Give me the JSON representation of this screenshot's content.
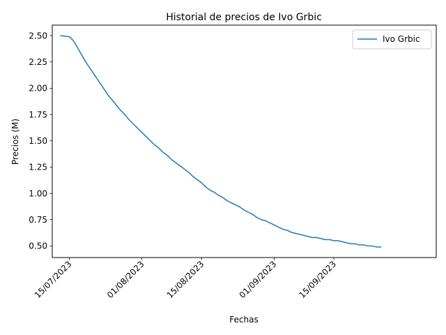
{
  "chart_data": {
    "type": "line",
    "title": "Historial de precios de Ivo Grbic",
    "xlabel": "Fechas",
    "ylabel": "Precios (M)",
    "legend_position": "top-right",
    "grid": false,
    "ylim": [
      0.39,
      2.6
    ],
    "xlim": [
      "2023-07-11",
      "2023-10-09"
    ],
    "x_ticks": [
      "2023-07-15",
      "2023-08-01",
      "2023-08-15",
      "2023-09-01",
      "2023-09-15"
    ],
    "x_tick_labels": [
      "15/07/2023",
      "01/08/2023",
      "15/08/2023",
      "01/09/2023",
      "15/09/2023"
    ],
    "y_ticks": [
      0.5,
      0.75,
      1.0,
      1.25,
      1.5,
      1.75,
      2.0,
      2.25,
      2.5
    ],
    "y_tick_labels": [
      "0.50",
      "0.75",
      "1.00",
      "1.25",
      "1.50",
      "1.75",
      "2.00",
      "2.25",
      "2.50"
    ],
    "series": [
      {
        "name": "Ivo Grbic",
        "color": "#1f77b4",
        "x": [
          "2023-07-13",
          "2023-07-15",
          "2023-07-16",
          "2023-07-17",
          "2023-07-18",
          "2023-07-19",
          "2023-07-20",
          "2023-07-21",
          "2023-07-22",
          "2023-07-23",
          "2023-07-24",
          "2023-07-25",
          "2023-07-26",
          "2023-07-27",
          "2023-07-28",
          "2023-07-29",
          "2023-07-30",
          "2023-07-31",
          "2023-08-01",
          "2023-08-02",
          "2023-08-03",
          "2023-08-04",
          "2023-08-05",
          "2023-08-06",
          "2023-08-07",
          "2023-08-08",
          "2023-08-09",
          "2023-08-10",
          "2023-08-11",
          "2023-08-12",
          "2023-08-13",
          "2023-08-14",
          "2023-08-15",
          "2023-08-16",
          "2023-08-17",
          "2023-08-18",
          "2023-08-19",
          "2023-08-20",
          "2023-08-21",
          "2023-08-22",
          "2023-08-23",
          "2023-08-24",
          "2023-08-25",
          "2023-08-26",
          "2023-08-27",
          "2023-08-28",
          "2023-08-29",
          "2023-08-30",
          "2023-08-31",
          "2023-09-01",
          "2023-09-02",
          "2023-09-03",
          "2023-09-04",
          "2023-09-05",
          "2023-09-06",
          "2023-09-07",
          "2023-09-08",
          "2023-09-09",
          "2023-09-10",
          "2023-09-11",
          "2023-09-12",
          "2023-09-13",
          "2023-09-14",
          "2023-09-15",
          "2023-09-16",
          "2023-09-17",
          "2023-09-18",
          "2023-09-19",
          "2023-09-20",
          "2023-09-21",
          "2023-09-22",
          "2023-09-23",
          "2023-09-24",
          "2023-09-25",
          "2023-09-26"
        ],
        "y": [
          2.5,
          2.49,
          2.45,
          2.38,
          2.31,
          2.24,
          2.18,
          2.12,
          2.06,
          2.0,
          1.94,
          1.89,
          1.84,
          1.79,
          1.75,
          1.7,
          1.66,
          1.62,
          1.58,
          1.54,
          1.5,
          1.46,
          1.43,
          1.39,
          1.36,
          1.32,
          1.29,
          1.26,
          1.23,
          1.2,
          1.16,
          1.13,
          1.1,
          1.06,
          1.03,
          1.01,
          0.98,
          0.96,
          0.93,
          0.91,
          0.89,
          0.87,
          0.84,
          0.82,
          0.8,
          0.77,
          0.75,
          0.74,
          0.72,
          0.7,
          0.68,
          0.66,
          0.65,
          0.63,
          0.62,
          0.61,
          0.6,
          0.59,
          0.58,
          0.58,
          0.57,
          0.56,
          0.56,
          0.55,
          0.55,
          0.54,
          0.53,
          0.52,
          0.52,
          0.51,
          0.51,
          0.5,
          0.5,
          0.49,
          0.49
        ]
      }
    ]
  }
}
